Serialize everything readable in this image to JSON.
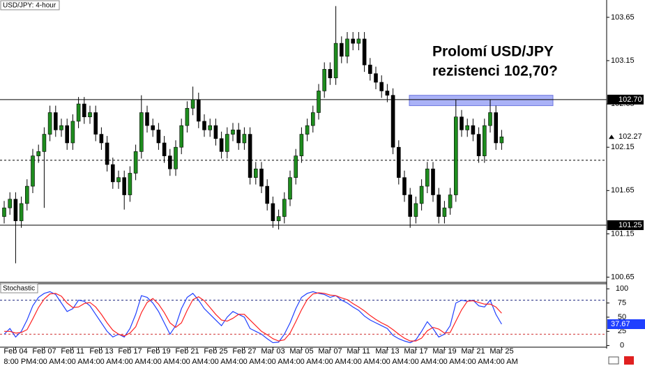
{
  "chart_data": [
    {
      "type": "candlestick",
      "title": "USD/JPY: 4-hour",
      "annotation": [
        "Prolomí USD/JPY",
        "rezistenci 102,70?"
      ],
      "open": [
        101.35,
        101.45,
        101.55,
        101.3,
        101.5,
        101.7,
        102.05,
        102.1,
        102.3,
        102.55,
        102.35,
        102.4,
        102.2,
        102.45,
        102.65,
        102.5,
        102.55,
        102.3,
        102.2,
        101.95,
        101.75,
        101.8,
        101.6,
        101.85,
        102.1,
        102.55,
        102.4,
        102.35,
        102.2,
        102.05,
        101.9,
        102.15,
        102.4,
        102.6,
        102.7,
        102.45,
        102.35,
        102.4,
        102.25,
        102.1,
        102.3,
        102.35,
        102.2,
        102.3,
        101.8,
        101.9,
        101.7,
        101.5,
        101.3,
        101.35,
        101.55,
        101.8,
        102.05,
        102.3,
        102.4,
        102.55,
        102.8,
        103.05,
        102.95,
        103.35,
        103.2,
        103.4,
        103.35,
        103.4,
        103.1,
        103.0,
        102.9,
        102.8,
        102.75,
        102.15,
        101.8,
        101.6,
        101.35,
        101.5,
        101.7,
        101.9,
        101.6,
        101.35,
        101.45,
        101.6,
        102.5,
        102.35,
        102.4,
        102.3,
        102.05,
        102.4,
        102.55,
        102.2
      ],
      "high": [
        101.53,
        101.63,
        101.63,
        101.58,
        101.78,
        102.13,
        102.18,
        102.38,
        102.63,
        102.63,
        102.48,
        102.48,
        102.53,
        102.73,
        102.73,
        102.63,
        102.63,
        102.38,
        102.28,
        102.03,
        101.88,
        101.88,
        101.93,
        102.18,
        102.75,
        102.63,
        102.48,
        102.43,
        102.28,
        102.13,
        102.23,
        102.48,
        102.68,
        102.85,
        102.78,
        102.53,
        102.48,
        102.48,
        102.33,
        102.38,
        102.43,
        102.43,
        102.38,
        102.38,
        101.98,
        101.98,
        101.78,
        101.58,
        101.43,
        101.63,
        101.88,
        102.13,
        102.38,
        102.48,
        102.63,
        102.88,
        103.13,
        103.13,
        103.78,
        103.43,
        103.48,
        103.48,
        103.48,
        103.48,
        103.18,
        103.08,
        102.98,
        102.88,
        102.83,
        102.23,
        101.88,
        101.68,
        101.58,
        101.78,
        101.98,
        101.98,
        101.68,
        101.53,
        101.68,
        102.7,
        102.58,
        102.48,
        102.48,
        102.38,
        102.48,
        102.7,
        102.63,
        102.35
      ],
      "low": [
        101.27,
        101.37,
        100.81,
        101.22,
        101.42,
        101.62,
        101.97,
        101.45,
        102.22,
        102.27,
        102.27,
        102.12,
        102.12,
        102.37,
        102.42,
        102.42,
        102.22,
        102.12,
        101.87,
        101.67,
        101.67,
        101.43,
        101.52,
        101.77,
        102.02,
        102.32,
        102.27,
        102.12,
        101.97,
        101.82,
        101.82,
        102.07,
        102.32,
        102.52,
        102.37,
        102.27,
        102.27,
        102.17,
        102.02,
        102.02,
        102.22,
        102.12,
        102.12,
        101.72,
        101.72,
        101.62,
        101.42,
        101.22,
        101.2,
        101.27,
        101.47,
        101.72,
        101.97,
        102.22,
        102.32,
        102.47,
        102.72,
        102.87,
        102.87,
        103.12,
        103.12,
        103.27,
        103.27,
        103.02,
        102.92,
        102.82,
        102.72,
        102.67,
        102.07,
        101.72,
        101.52,
        101.22,
        101.27,
        101.42,
        101.62,
        101.52,
        101.27,
        101.27,
        101.37,
        101.52,
        102.27,
        102.27,
        102.22,
        101.97,
        101.97,
        102.32,
        102.12,
        102.12
      ],
      "close": [
        101.45,
        101.55,
        101.3,
        101.5,
        101.7,
        102.05,
        102.1,
        102.3,
        102.55,
        102.35,
        102.4,
        102.2,
        102.45,
        102.65,
        102.5,
        102.55,
        102.3,
        102.2,
        101.95,
        101.75,
        101.8,
        101.6,
        101.85,
        102.1,
        102.55,
        102.4,
        102.35,
        102.2,
        102.05,
        101.9,
        102.15,
        102.4,
        102.6,
        102.7,
        102.45,
        102.35,
        102.4,
        102.25,
        102.1,
        102.3,
        102.35,
        102.2,
        102.3,
        101.8,
        101.9,
        101.7,
        101.5,
        101.3,
        101.35,
        101.55,
        101.8,
        102.05,
        102.3,
        102.4,
        102.55,
        102.8,
        103.05,
        102.95,
        103.35,
        103.2,
        103.4,
        103.35,
        103.4,
        103.1,
        103.0,
        102.9,
        102.8,
        102.75,
        102.15,
        101.8,
        101.6,
        101.35,
        101.5,
        101.7,
        101.9,
        101.6,
        101.35,
        101.45,
        101.6,
        102.5,
        102.35,
        102.4,
        102.3,
        102.05,
        102.4,
        102.55,
        102.2,
        102.27
      ],
      "up_color": "#1e8c1e",
      "down_color": "#000000",
      "ylim": [
        100.59,
        103.85
      ],
      "yticks": [
        103.65,
        103.15,
        102.65,
        102.15,
        101.65,
        101.15,
        100.65
      ],
      "levels": [
        {
          "value": 102.7,
          "label": "102.70",
          "style": "solid"
        },
        {
          "value": 102.0,
          "style": "dashed"
        },
        {
          "value": 101.25,
          "labeled": true,
          "style": "solid"
        }
      ],
      "zone": [
        102.63,
        102.75
      ],
      "zone_color": "#aab2f7",
      "last_price_marker": true
    },
    {
      "type": "line",
      "title": "Stochastic",
      "categories": [
        null,
        null,
        "Feb 04",
        null,
        null,
        null,
        null,
        "Feb 07",
        null,
        null,
        null,
        null,
        "Feb 11",
        null,
        null,
        null,
        null,
        "Feb 13",
        null,
        null,
        null,
        null,
        "Feb 17",
        null,
        null,
        null,
        null,
        "Feb 19",
        null,
        null,
        null,
        null,
        "Feb 21",
        null,
        null,
        null,
        null,
        "Feb 25",
        null,
        null,
        null,
        null,
        "Feb 27",
        null,
        null,
        null,
        null,
        "Mar 03",
        null,
        null,
        null,
        null,
        "Mar 05",
        null,
        null,
        null,
        null,
        "Mar 07",
        null,
        null,
        null,
        null,
        "Mar 11",
        null,
        null,
        null,
        null,
        "Mar 13",
        null,
        null,
        null,
        null,
        "Mar 17",
        null,
        null,
        null,
        null,
        "Mar 19",
        null,
        null,
        null,
        null,
        "Mar 21",
        null,
        null,
        null,
        null,
        "Mar 25"
      ],
      "time_labels": [
        null,
        null,
        "8:00 PM",
        null,
        null,
        null,
        null,
        "4:00 AM",
        null,
        null,
        null,
        null,
        "4:00 AM",
        null,
        null,
        null,
        null,
        "4:00 AM",
        null,
        null,
        null,
        null,
        "4:00 AM",
        null,
        null,
        null,
        null,
        "4:00 AM",
        null,
        null,
        null,
        null,
        "4:00 AM",
        null,
        null,
        null,
        null,
        "4:00 AM",
        null,
        null,
        null,
        null,
        "4:00 AM",
        null,
        null,
        null,
        null,
        "4:00 AM",
        null,
        null,
        null,
        null,
        "4:00 AM",
        null,
        null,
        null,
        null,
        "4:00 AM",
        null,
        null,
        null,
        null,
        "4:00 AM",
        null,
        null,
        null,
        null,
        "4:00 AM",
        null,
        null,
        null,
        null,
        "4:00 AM",
        null,
        null,
        null,
        null,
        "4:00 AM",
        null,
        null,
        null,
        null,
        "4:00 AM",
        null,
        null,
        null,
        null,
        "4:00 AM"
      ],
      "series": [
        {
          "color": "#1f3fff",
          "values": [
            20,
            30,
            15,
            25,
            45,
            70,
            85,
            92,
            95,
            90,
            75,
            60,
            65,
            80,
            78,
            70,
            55,
            40,
            25,
            15,
            20,
            15,
            30,
            55,
            88,
            85,
            75,
            60,
            40,
            20,
            35,
            65,
            85,
            92,
            80,
            65,
            55,
            45,
            35,
            50,
            60,
            55,
            50,
            30,
            25,
            20,
            12,
            5,
            6,
            20,
            40,
            65,
            85,
            92,
            95,
            92,
            90,
            85,
            88,
            80,
            75,
            68,
            62,
            52,
            45,
            40,
            35,
            30,
            18,
            12,
            8,
            5,
            10,
            25,
            42,
            30,
            15,
            20,
            35,
            75,
            80,
            78,
            80,
            70,
            68,
            80,
            55,
            37.67
          ]
        },
        {
          "color": "#ff2020",
          "values": [
            25,
            25,
            22,
            23,
            28,
            47,
            67,
            82,
            91,
            92,
            87,
            75,
            67,
            68,
            74,
            76,
            68,
            55,
            40,
            27,
            20,
            17,
            22,
            33,
            58,
            76,
            83,
            73,
            58,
            40,
            32,
            40,
            62,
            81,
            86,
            79,
            67,
            55,
            45,
            43,
            48,
            55,
            55,
            45,
            35,
            25,
            19,
            12,
            8,
            10,
            22,
            42,
            63,
            81,
            91,
            93,
            92,
            89,
            88,
            84,
            81,
            74,
            68,
            61,
            53,
            46,
            40,
            35,
            28,
            20,
            13,
            8,
            8,
            13,
            26,
            32,
            29,
            22,
            23,
            43,
            63,
            78,
            79,
            76,
            73,
            73,
            68,
            57
          ]
        }
      ],
      "ylim": [
        2,
        109
      ],
      "yticks": [
        100,
        75,
        50,
        25,
        0
      ],
      "levels": [
        {
          "value": 80,
          "color": "#1a237e"
        },
        {
          "value": 20,
          "color": "#d03030"
        }
      ],
      "last_value_label_series": 0
    }
  ]
}
